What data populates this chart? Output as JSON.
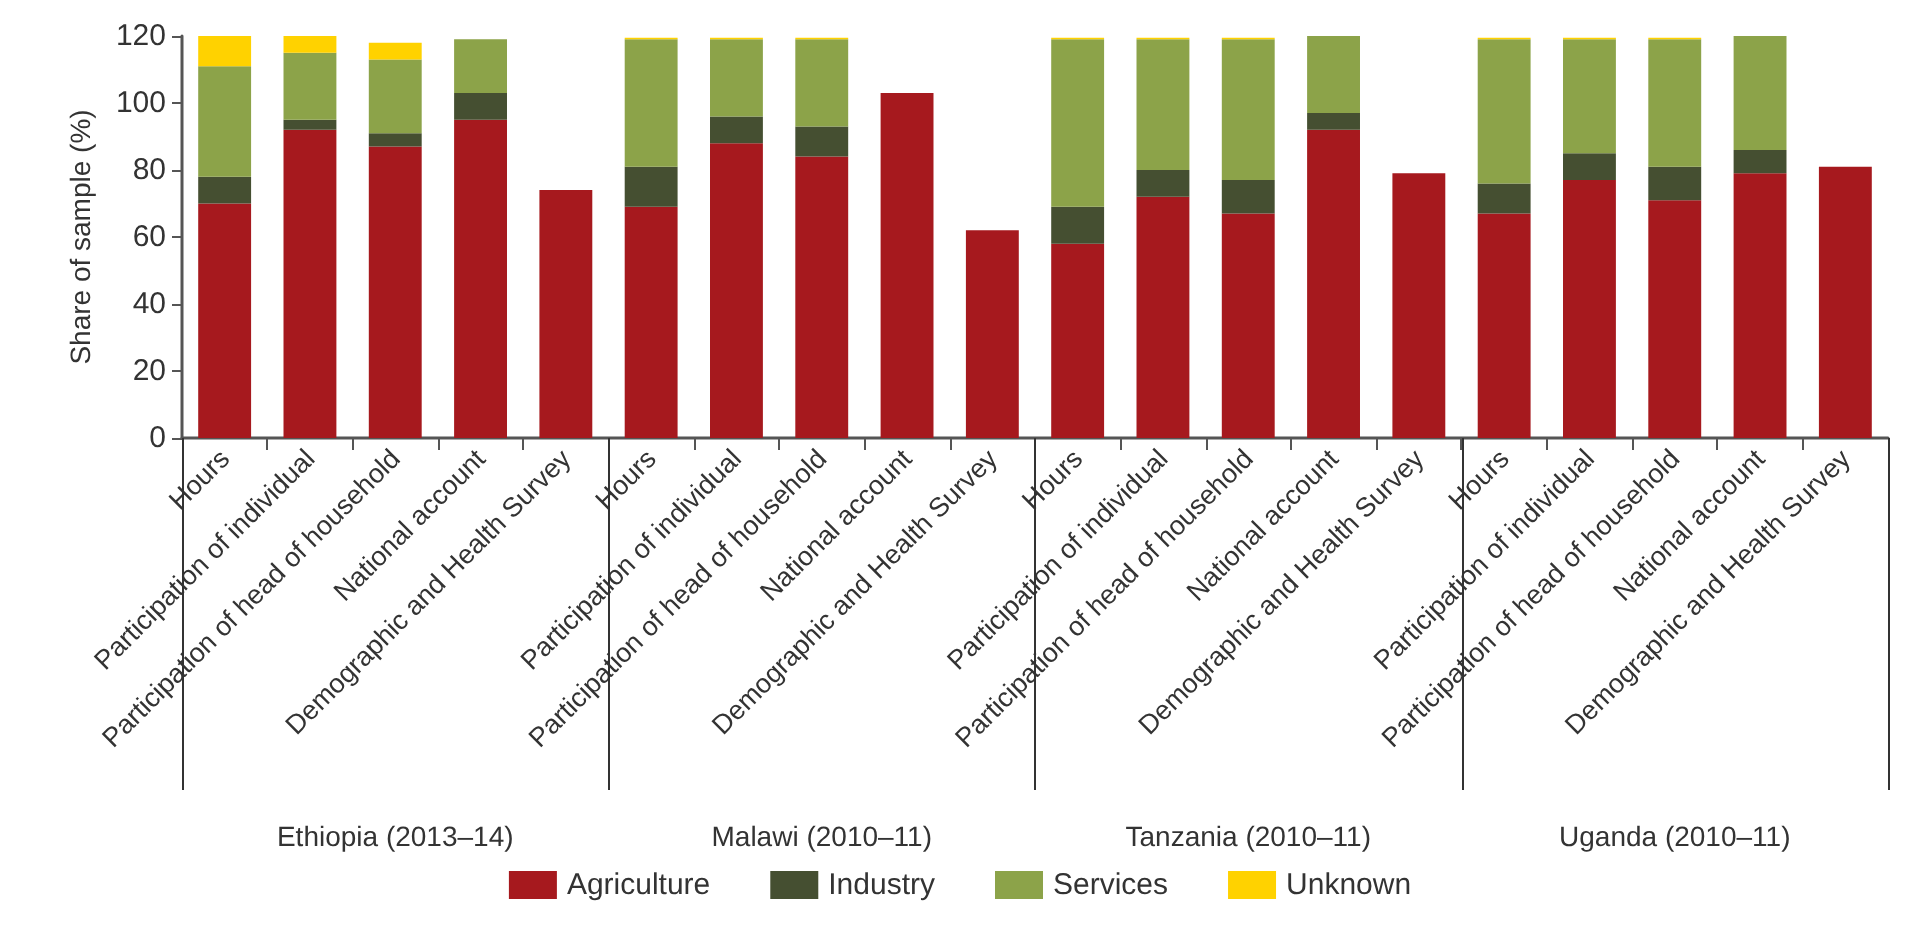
{
  "chart_data": {
    "type": "bar",
    "stacked": true,
    "ylabel": "Share of sample (%)",
    "categories": [
      "Hours",
      "Participation of individual",
      "Participation of head of household",
      "National account",
      "Demographic and Health Survey",
      "Hours",
      "Participation of individual",
      "Participation of head of household",
      "National account",
      "Demographic and Health Survey",
      "Hours",
      "Participation of individual",
      "Participation of head of household",
      "National account",
      "Demographic and Health Survey",
      "Hours",
      "Participation of individual",
      "Participation of head of household",
      "National account",
      "Demographic and Health Survey"
    ],
    "series": [
      {
        "name": "Agriculture",
        "color": "#a6191e",
        "values": [
          70,
          92,
          87,
          95,
          74,
          69,
          88,
          84,
          103,
          62,
          58,
          72,
          67,
          92,
          79,
          67,
          77,
          71,
          79,
          81
        ]
      },
      {
        "name": "Industry",
        "color": "#454f31",
        "values": [
          8,
          3,
          4,
          8,
          null,
          12,
          8,
          9,
          null,
          null,
          11,
          8,
          10,
          5,
          null,
          9,
          8,
          10,
          7,
          null
        ]
      },
      {
        "name": "Services",
        "color": "#8ca349",
        "values": [
          33,
          20,
          22,
          16,
          null,
          38,
          23,
          26,
          null,
          null,
          50,
          39,
          42,
          23,
          null,
          43,
          34,
          38,
          34,
          null
        ]
      },
      {
        "name": "Unknown",
        "color": "#ffd200",
        "values": [
          9,
          5,
          5,
          null,
          null,
          0.5,
          0.5,
          0.5,
          null,
          null,
          0.5,
          0.5,
          0.5,
          null,
          null,
          0.5,
          0.5,
          0.5,
          null,
          null
        ]
      }
    ],
    "ylim": [
      0,
      120
    ],
    "yticks": [
      0,
      20,
      40,
      60,
      80,
      100,
      120
    ],
    "grid": false,
    "legend": "bottom",
    "annotations": [
      "Ethiopia (2013–14)",
      "Malawi (2010–11)",
      "Tanzania (2010–11)",
      "Uganda (2010–11)"
    ]
  }
}
